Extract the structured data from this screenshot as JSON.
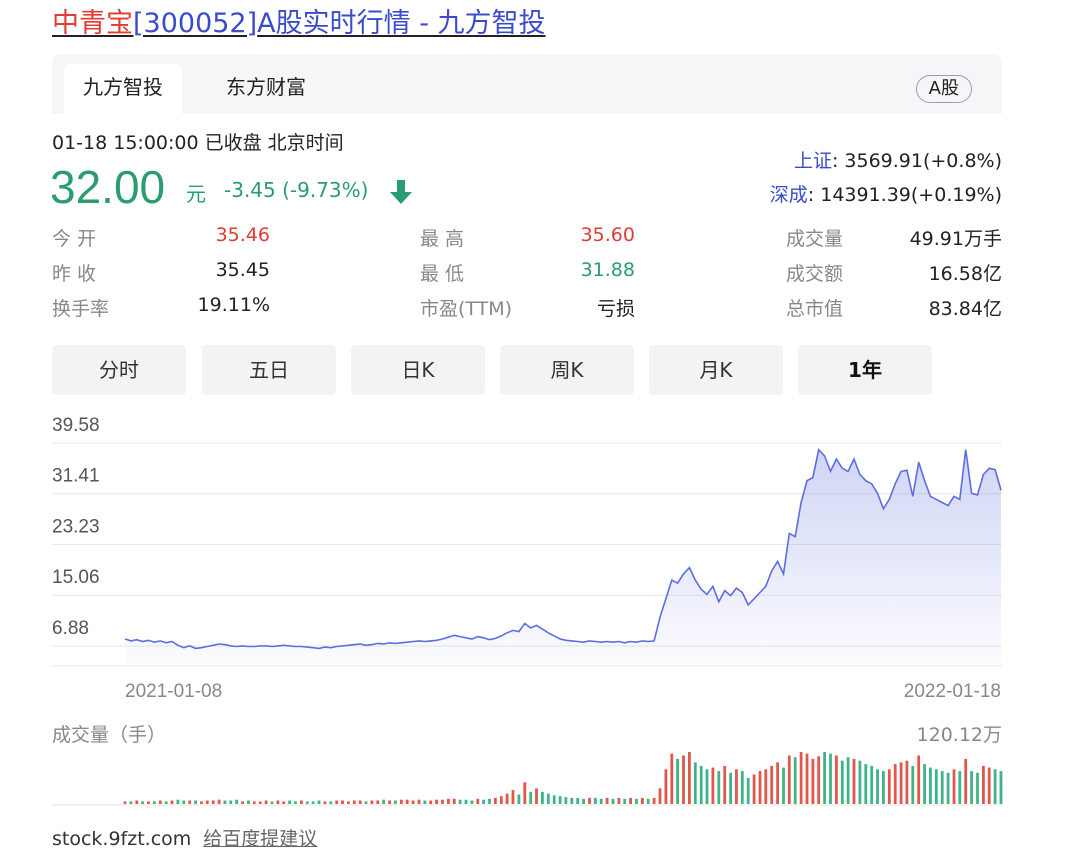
{
  "title": {
    "stock_name": "中青宝",
    "stock_code": "[300052]",
    "rest": "A股实时行情 - 九方智投"
  },
  "tabs": [
    {
      "label": "九方智投",
      "active": true
    },
    {
      "label": "东方财富",
      "active": false
    }
  ],
  "badge": "A股",
  "quote": {
    "time": "01-18 15:00:00  已收盘  北京时间",
    "price": "32.00",
    "unit": "元",
    "change": "-3.45 (-9.73%)",
    "direction": "down"
  },
  "indices": [
    {
      "name": "上证",
      "value": ": 3569.91(+0.8%)"
    },
    {
      "name": "深成",
      "value": ": 14391.39(+0.19%)"
    }
  ],
  "stats": [
    [
      {
        "label": "今  开",
        "value": "35.46",
        "color": "#e03c31"
      },
      {
        "label": "最  高",
        "value": "35.60",
        "color": "#e03c31"
      },
      {
        "label": "成交量",
        "value": "49.91万手",
        "color": "#222222"
      }
    ],
    [
      {
        "label": "昨  收",
        "value": "35.45",
        "color": "#222222"
      },
      {
        "label": "最  低",
        "value": "31.88",
        "color": "#2a9d6f"
      },
      {
        "label": "成交额",
        "value": "16.58亿",
        "color": "#222222"
      }
    ],
    [
      {
        "label": "换手率",
        "value": "19.11%",
        "color": "#222222"
      },
      {
        "label": "市盈(TTM)",
        "value": "亏损",
        "color": "#222222"
      },
      {
        "label": "总市值",
        "value": "83.84亿",
        "color": "#222222"
      }
    ]
  ],
  "periods": [
    {
      "label": "分时",
      "active": false
    },
    {
      "label": "五日",
      "active": false
    },
    {
      "label": "日K",
      "active": false
    },
    {
      "label": "周K",
      "active": false
    },
    {
      "label": "月K",
      "active": false
    },
    {
      "label": "1年",
      "active": true
    }
  ],
  "chart_data": {
    "type": "area",
    "y_ticks": [
      "39.58",
      "31.41",
      "23.23",
      "15.06",
      "6.88"
    ],
    "ylim": [
      6.88,
      39.58
    ],
    "x_labels": [
      "2021-01-08",
      "2022-01-18"
    ],
    "series": [
      {
        "values": [
          8.0,
          7.7,
          7.9,
          7.6,
          7.8,
          7.5,
          7.7,
          7.4,
          7.6,
          7.0,
          6.6,
          6.9,
          6.5,
          6.6,
          6.8,
          7.0,
          7.2,
          7.1,
          6.9,
          6.8,
          6.9,
          6.8,
          6.8,
          6.9,
          6.9,
          6.8,
          6.9,
          7.0,
          6.9,
          6.8,
          6.8,
          6.7,
          6.6,
          6.5,
          6.7,
          6.6,
          6.8,
          6.9,
          7.0,
          7.1,
          7.2,
          7.0,
          7.1,
          7.3,
          7.2,
          7.4,
          7.3,
          7.4,
          7.5,
          7.6,
          7.7,
          7.6,
          7.7,
          7.8,
          8.0,
          8.3,
          8.6,
          8.4,
          8.2,
          8.0,
          8.4,
          8.2,
          7.9,
          8.1,
          8.5,
          9.0,
          9.4,
          9.2,
          10.5,
          9.8,
          10.2,
          9.6,
          9.0,
          8.5,
          8.0,
          7.8,
          7.7,
          7.6,
          7.5,
          7.7,
          7.6,
          7.5,
          7.6,
          7.5,
          7.6,
          7.4,
          7.6,
          7.5,
          7.7,
          7.6,
          7.7,
          11.5,
          14.5,
          17.5,
          17.0,
          18.5,
          19.5,
          17.5,
          16.0,
          15.2,
          16.5,
          14.0,
          15.8,
          15.0,
          16.2,
          15.5,
          13.5,
          14.5,
          15.5,
          16.5,
          19.0,
          20.5,
          18.5,
          25.0,
          24.5,
          30.0,
          33.5,
          34.0,
          38.5,
          37.5,
          35.0,
          37.0,
          35.5,
          35.0,
          37.0,
          34.5,
          33.5,
          33.0,
          31.5,
          29.0,
          30.5,
          33.0,
          35.0,
          35.2,
          31.0,
          36.5,
          33.5,
          31.0,
          30.5,
          30.0,
          29.5,
          31.0,
          30.5,
          38.5,
          31.5,
          31.2,
          34.5,
          35.5,
          35.3,
          32.0
        ],
        "volume": [
          3,
          3,
          4,
          3,
          3,
          3,
          4,
          3,
          4,
          5,
          4,
          4,
          4,
          3,
          4,
          4,
          5,
          4,
          4,
          5,
          3,
          4,
          3,
          3,
          4,
          3,
          4,
          3,
          4,
          3,
          4,
          3,
          3,
          4,
          3,
          3,
          4,
          4,
          3,
          4,
          4,
          3,
          4,
          4,
          5,
          4,
          4,
          5,
          5,
          4,
          5,
          4,
          4,
          5,
          5,
          6,
          6,
          5,
          5,
          4,
          6,
          5,
          6,
          7,
          9,
          12,
          16,
          11,
          25,
          14,
          18,
          14,
          12,
          10,
          9,
          8,
          7,
          7,
          6,
          7,
          7,
          6,
          7,
          6,
          7,
          6,
          7,
          6,
          7,
          6,
          7,
          18,
          40,
          58,
          52,
          56,
          60,
          48,
          44,
          40,
          42,
          38,
          44,
          36,
          40,
          38,
          30,
          34,
          38,
          40,
          44,
          48,
          42,
          56,
          54,
          60,
          58,
          52,
          55,
          60,
          58,
          56,
          50,
          54,
          52,
          50,
          46,
          44,
          40,
          38,
          40,
          46,
          48,
          50,
          44,
          56,
          46,
          42,
          40,
          38,
          36,
          40,
          38,
          52,
          38,
          36,
          44,
          42,
          40,
          38
        ]
      }
    ]
  },
  "volume_title": "成交量（手）",
  "volume_max": "120.12万",
  "footer": {
    "domain": "stock.9fzt.com",
    "link": "给百度提建议"
  }
}
